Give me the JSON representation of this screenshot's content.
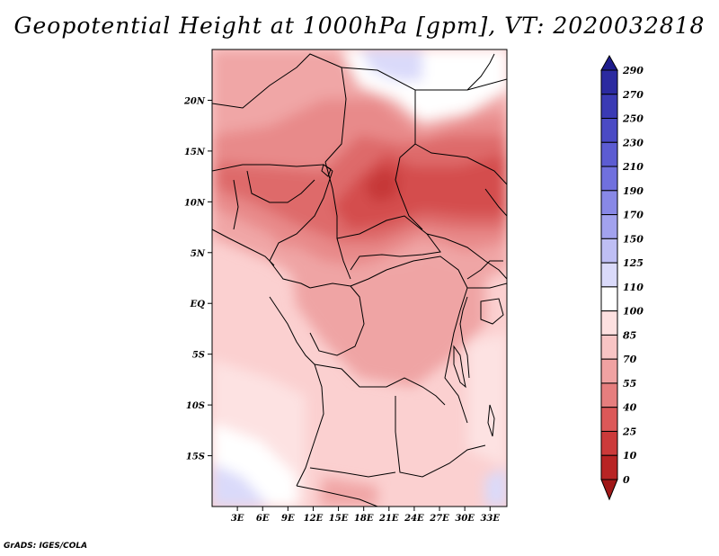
{
  "title": "Geopotential Height at 1000hPa [gpm], VT: 2020032818",
  "credit": "GrADS: IGES/COLA",
  "map": {
    "lat_labels": [
      "20N",
      "15N",
      "10N",
      "5N",
      "EQ",
      "5S",
      "10S",
      "15S"
    ],
    "lat_values": [
      20,
      15,
      10,
      5,
      0,
      -5,
      -10,
      -15
    ],
    "lon_labels": [
      "3E",
      "6E",
      "9E",
      "12E",
      "15E",
      "18E",
      "21E",
      "24E",
      "27E",
      "30E",
      "33E"
    ],
    "lon_values": [
      3,
      6,
      9,
      12,
      15,
      18,
      21,
      24,
      27,
      30,
      33
    ],
    "lat_range": [
      -20,
      25
    ],
    "lon_range": [
      0,
      35
    ]
  },
  "colorbar": {
    "labels": [
      "290",
      "270",
      "250",
      "230",
      "210",
      "190",
      "170",
      "150",
      "125",
      "110",
      "100",
      "85",
      "70",
      "55",
      "40",
      "25",
      "10",
      "0"
    ],
    "colors": [
      "#1e1c8c",
      "#2b2aa0",
      "#3a3ab4",
      "#4a4ac4",
      "#5c5cd2",
      "#7070de",
      "#8888e6",
      "#a2a2ee",
      "#bebef4",
      "#dadafa",
      "#ffffff",
      "#fde0e0",
      "#f8c4c4",
      "#f0a2a2",
      "#e67e7e",
      "#dc5858",
      "#cc3a3a",
      "#b82424",
      "#a01818"
    ]
  }
}
